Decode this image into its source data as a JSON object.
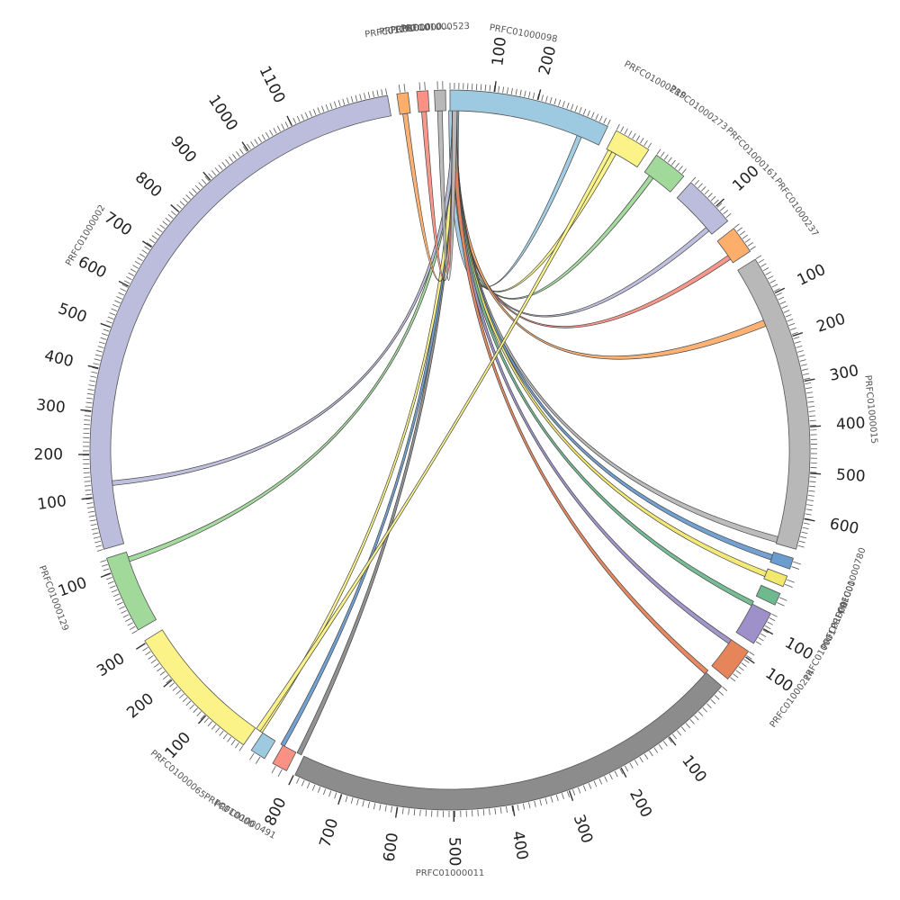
{
  "chart_data": {
    "type": "chord",
    "contigs": [
      {
        "name": "PRFC01000098",
        "start_deg": 0.0,
        "end_deg": 26.0,
        "color": "#9ecae1",
        "ticks": [
          "100",
          "200"
        ],
        "tick_deg": [
          7.1,
          14.1
        ]
      },
      {
        "name": "PRFC01000219",
        "start_deg": 27.5,
        "end_deg": 33.5,
        "color": "#fbf387",
        "ticks": [],
        "tick_deg": []
      },
      {
        "name": "PRFC01000273",
        "start_deg": 35.0,
        "end_deg": 40.5,
        "color": "#a1d99b",
        "ticks": [],
        "tick_deg": []
      },
      {
        "name": "PRFC01000161",
        "start_deg": 42.0,
        "end_deg": 50.5,
        "color": "#bcbddc",
        "ticks": [
          "100"
        ],
        "tick_deg": [
          47.5
        ]
      },
      {
        "name": "PRFC01000237",
        "start_deg": 52.0,
        "end_deg": 56.5,
        "color": "#fdae6b",
        "ticks": [],
        "tick_deg": []
      },
      {
        "name": "PRFC01000015",
        "start_deg": 58.0,
        "end_deg": 106.0,
        "color": "#b8b8b8",
        "ticks": [
          "100",
          "200",
          "300",
          "400",
          "500",
          "600"
        ],
        "tick_deg": [
          64.2,
          71.6,
          79.0,
          86.3,
          93.7,
          101.0
        ]
      },
      {
        "name": "PRFC01000",
        "start_deg": 107.5,
        "end_deg": 109.3,
        "color": "#6b9ccf",
        "ticks": [],
        "tick_deg": []
      },
      {
        "name": "PRFC01000780",
        "start_deg": 110.5,
        "end_deg": 112.3,
        "color": "#f2e86d",
        "ticks": [],
        "tick_deg": []
      },
      {
        "name": "PRFC01000",
        "start_deg": 113.5,
        "end_deg": 115.5,
        "color": "#6fb98f",
        "ticks": [],
        "tick_deg": []
      },
      {
        "name": "PRFC010001",
        "start_deg": 117.0,
        "end_deg": 122.5,
        "color": "#9e90c8",
        "ticks": [
          "100"
        ],
        "tick_deg": [
          119.7
        ]
      },
      {
        "name": "PRFC01000214",
        "start_deg": 124.0,
        "end_deg": 129.5,
        "color": "#e6845a",
        "ticks": [
          "100"
        ],
        "tick_deg": [
          125.0
        ]
      },
      {
        "name": "PRFC01000011",
        "start_deg": 131.0,
        "end_deg": 205.5,
        "color": "#8c8c8c",
        "ticks": [
          "100",
          "200",
          "300",
          "400",
          "500",
          "600",
          "700",
          "800"
        ],
        "tick_deg": [
          142.6,
          151.7,
          160.7,
          170.0,
          179.4,
          188.4,
          197.5,
          205.7
        ]
      },
      {
        "name": "PRFC01000491",
        "start_deg": 207.0,
        "end_deg": 209.5,
        "color": "#fa9185",
        "ticks": [],
        "tick_deg": []
      },
      {
        "name": "PRFC010000",
        "start_deg": 211.0,
        "end_deg": 213.5,
        "color": "#9ecae1",
        "ticks": [],
        "tick_deg": []
      },
      {
        "name": "PRFC01000065",
        "start_deg": 215.0,
        "end_deg": 238.0,
        "color": "#fbf387",
        "ticks": [
          "100",
          "200",
          "300"
        ],
        "tick_deg": [
          222.6,
          230.4,
          237.6
        ]
      },
      {
        "name": "PRFC01000129",
        "start_deg": 240.0,
        "end_deg": 252.5,
        "color": "#a1d99b",
        "ticks": [
          "100"
        ],
        "tick_deg": [
          250.0
        ]
      },
      {
        "name": "PRFC01000002",
        "start_deg": 254.0,
        "end_deg": 350.0,
        "color": "#bcbddc",
        "ticks": [
          "100",
          "200",
          "300",
          "400",
          "500",
          "600",
          "700",
          "800",
          "900",
          "1000",
          "1100"
        ],
        "tick_deg": [
          262.4,
          269.3,
          276.2,
          283.1,
          289.9,
          297.0,
          304.2,
          311.3,
          318.4,
          326.0,
          334.0
        ]
      },
      {
        "name": "PRFC01000...",
        "start_deg": 351.5,
        "end_deg": 353.3,
        "color": "#fdae6b",
        "ticks": [],
        "tick_deg": []
      },
      {
        "name": "PRFC01000...",
        "start_deg": 354.7,
        "end_deg": 356.5,
        "color": "#fa9185",
        "ticks": [],
        "tick_deg": []
      },
      {
        "name": "PRFC01000523",
        "start_deg": 357.5,
        "end_deg": 359.3,
        "color": "#b8b8b8",
        "ticks": [],
        "tick_deg": []
      }
    ],
    "contig_labels": [
      {
        "text": "PRFC01000098",
        "deg": 10.0
      },
      {
        "text": "PRFC01000219",
        "deg": 29.0
      },
      {
        "text": "PRFC01000273",
        "deg": 36.0
      },
      {
        "text": "PRFC01000161",
        "deg": 45.5
      },
      {
        "text": "PRFC01000237",
        "deg": 55.0
      },
      {
        "text": "PRFC01000015",
        "deg": 84.5
      },
      {
        "text": "PRFC01000780",
        "deg": 108.0
      },
      {
        "text": "PRFC01000",
        "deg": 111.5
      },
      {
        "text": "PRFC01000",
        "deg": 114.5
      },
      {
        "text": "PRFC010001",
        "deg": 119.0
      },
      {
        "text": "PRFC01000214",
        "deg": 126.0
      },
      {
        "text": "PRFC01000011",
        "deg": 180.0
      },
      {
        "text": "PRFC01000491",
        "deg": 209.0
      },
      {
        "text": "PRFC010000",
        "deg": 211.5
      },
      {
        "text": "PRFC01000065",
        "deg": 220.0
      },
      {
        "text": "PRFC01000129",
        "deg": 249.5
      },
      {
        "text": "PRFC01000002",
        "deg": 300.5
      },
      {
        "text": "PRFC01000...",
        "deg": 352.5
      },
      {
        "text": "PRFC01000...",
        "deg": 354.5
      },
      {
        "text": "PRFC01000...",
        "deg": 356.0
      },
      {
        "text": "PRFC01000523",
        "deg": 358.0
      }
    ],
    "links": [
      {
        "from": "PRFC01000098",
        "to": "PRFC01000098",
        "color": "#9ecae1",
        "a": [
          359.8,
          1.5
        ],
        "b": [
          22.0,
          22.8
        ]
      },
      {
        "from": "PRFC01000098",
        "to": "PRFC01000219",
        "color": "#fbf387",
        "a": [
          0.4,
          1.2
        ],
        "b": [
          28.5,
          29.3
        ]
      },
      {
        "from": "PRFC01000098",
        "to": "PRFC01000273",
        "color": "#a1d99b",
        "a": [
          0.4,
          1.2
        ],
        "b": [
          36.0,
          36.8
        ]
      },
      {
        "from": "PRFC01000098",
        "to": "PRFC01000161",
        "color": "#bcbddc",
        "a": [
          0.4,
          1.2
        ],
        "b": [
          49.0,
          49.8
        ]
      },
      {
        "from": "PRFC01000098",
        "to": "PRFC01000237",
        "color": "#fa9185",
        "a": [
          0.4,
          1.2
        ],
        "b": [
          55.0,
          55.8
        ]
      },
      {
        "from": "PRFC01000098",
        "to": "PRFC01000015",
        "color": "#fdae6b",
        "a": [
          0.4,
          1.2
        ],
        "b": [
          67.5,
          68.6
        ]
      },
      {
        "from": "PRFC01000098",
        "to": "PRFC01000015",
        "color": "#b8b8b8",
        "a": [
          0.4,
          1.2
        ],
        "b": [
          104.8,
          105.8
        ]
      },
      {
        "from": "PRFC01000098",
        "to": "PRFC01000",
        "color": "#6b9ccf",
        "a": [
          0.4,
          1.2
        ],
        "b": [
          108.0,
          108.9
        ]
      },
      {
        "from": "PRFC01000098",
        "to": "PRFC01000780",
        "color": "#f2e86d",
        "a": [
          0.4,
          1.2
        ],
        "b": [
          111.0,
          111.9
        ]
      },
      {
        "from": "PRFC01000098",
        "to": "PRFC01000",
        "color": "#6fb98f",
        "a": [
          0.4,
          1.2
        ],
        "b": [
          116.5,
          117.3
        ]
      },
      {
        "from": "PRFC01000098",
        "to": "PRFC010001",
        "color": "#9e90c8",
        "a": [
          0.4,
          1.2
        ],
        "b": [
          124.0,
          124.8
        ]
      },
      {
        "from": "PRFC01000098",
        "to": "PRFC01000214",
        "color": "#e6845a",
        "a": [
          0.4,
          1.2
        ],
        "b": [
          130.5,
          131.3
        ]
      },
      {
        "from": "PRFC01000098",
        "to": "PRFC01000011",
        "color": "#8c8c8c",
        "a": [
          0.4,
          1.2
        ],
        "b": [
          206.0,
          206.8
        ]
      },
      {
        "from": "PRFC01000098",
        "to": "PRFC01000491",
        "color": "#6b9ccf",
        "a": [
          0.4,
          1.2
        ],
        "b": [
          209.2,
          209.9
        ]
      },
      {
        "from": "PRFC01000098",
        "to": "PRFC01000065",
        "color": "#fbf387",
        "a": [
          0.4,
          1.2
        ],
        "b": [
          213.6,
          214.3
        ]
      },
      {
        "from": "PRFC01000098",
        "to": "PRFC01000129",
        "color": "#a1d99b",
        "a": [
          0.4,
          1.2
        ],
        "b": [
          250.8,
          251.6
        ]
      },
      {
        "from": "PRFC01000098",
        "to": "PRFC01000002",
        "color": "#bcbddc",
        "a": [
          0.4,
          1.2
        ],
        "b": [
          264.0,
          264.8
        ]
      },
      {
        "from": "PRFC01000098",
        "to": "PRFC01000...",
        "color": "#fdae6b",
        "a": [
          0.4,
          1.2
        ],
        "b": [
          352.0,
          352.8
        ]
      },
      {
        "from": "PRFC01000098",
        "to": "PRFC01000...",
        "color": "#fa9185",
        "a": [
          0.4,
          1.2
        ],
        "b": [
          355.2,
          356.0
        ]
      },
      {
        "from": "PRFC01000098",
        "to": "PRFC01000523",
        "color": "#b8b8b8",
        "a": [
          0.4,
          1.2
        ],
        "b": [
          357.9,
          358.7
        ]
      },
      {
        "from": "PRFC01000219",
        "to": "PRFC01000011",
        "color": "#fbf387",
        "a": [
          27.8,
          28.5
        ],
        "b": [
          214.0,
          214.8
        ]
      }
    ]
  }
}
